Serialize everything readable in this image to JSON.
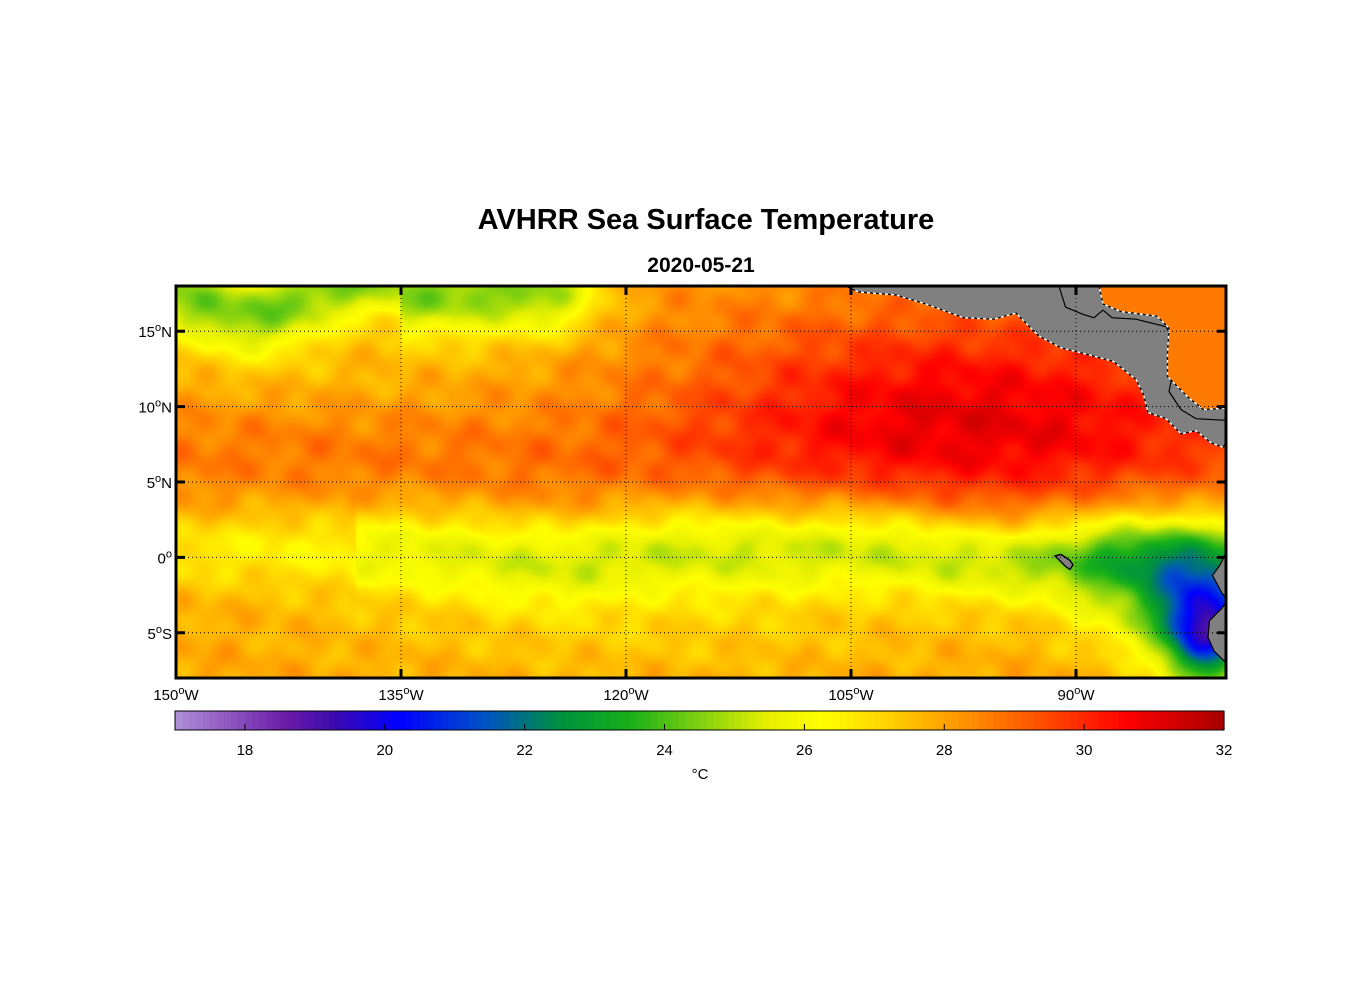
{
  "title": "AVHRR Sea Surface Temperature",
  "date": "2020-05-21",
  "chart_data": {
    "type": "heatmap",
    "variable": "Sea Surface Temperature",
    "units_label": "°C",
    "lon_range": [
      -150,
      -80
    ],
    "lat_range": [
      -8,
      18
    ],
    "lon_ticks": [
      {
        "value": -150,
        "num": "150",
        "deg": "o",
        "hemi": "W"
      },
      {
        "value": -135,
        "num": "135",
        "deg": "o",
        "hemi": "W"
      },
      {
        "value": -120,
        "num": "120",
        "deg": "o",
        "hemi": "W"
      },
      {
        "value": -105,
        "num": "105",
        "deg": "o",
        "hemi": "W"
      },
      {
        "value": -90,
        "num": "90",
        "deg": "o",
        "hemi": "W"
      }
    ],
    "lat_ticks": [
      {
        "value": 15,
        "num": "15",
        "deg": "o",
        "hemi": "N"
      },
      {
        "value": 10,
        "num": "10",
        "deg": "o",
        "hemi": "N"
      },
      {
        "value": 5,
        "num": "5",
        "deg": "o",
        "hemi": "N"
      },
      {
        "value": 0,
        "num": "0",
        "deg": "o",
        "hemi": ""
      },
      {
        "value": -5,
        "num": "5",
        "deg": "o",
        "hemi": "S"
      }
    ],
    "colorbar": {
      "min": 17,
      "max": 32,
      "tick_labels": [
        "18",
        "20",
        "22",
        "24",
        "26",
        "28",
        "30",
        "32"
      ],
      "tick_values": [
        18,
        20,
        22,
        24,
        26,
        28,
        30,
        32
      ]
    },
    "colormap": [
      {
        "t": 17,
        "c": "#b08fd6"
      },
      {
        "t": 18.6,
        "c": "#6a1aa8"
      },
      {
        "t": 19.3,
        "c": "#3a0ab0"
      },
      {
        "t": 20.2,
        "c": "#0000ff"
      },
      {
        "t": 21.4,
        "c": "#0050c8"
      },
      {
        "t": 22.5,
        "c": "#009040"
      },
      {
        "t": 23.5,
        "c": "#18b018"
      },
      {
        "t": 24.5,
        "c": "#80d010"
      },
      {
        "t": 25.5,
        "c": "#e8f000"
      },
      {
        "t": 26.3,
        "c": "#ffff00"
      },
      {
        "t": 27.5,
        "c": "#ffc000"
      },
      {
        "t": 28.6,
        "c": "#ff8000"
      },
      {
        "t": 29.6,
        "c": "#ff4000"
      },
      {
        "t": 30.6,
        "c": "#ff0000"
      },
      {
        "t": 32,
        "c": "#a80000"
      }
    ],
    "field_description_values": {
      "equatorial_cold_tongue_min": 23.8,
      "warm_pool_max": 30.8,
      "coastal_peru_min": 19.8,
      "north_edge_min": 24.2
    },
    "land_color": "#808080"
  }
}
